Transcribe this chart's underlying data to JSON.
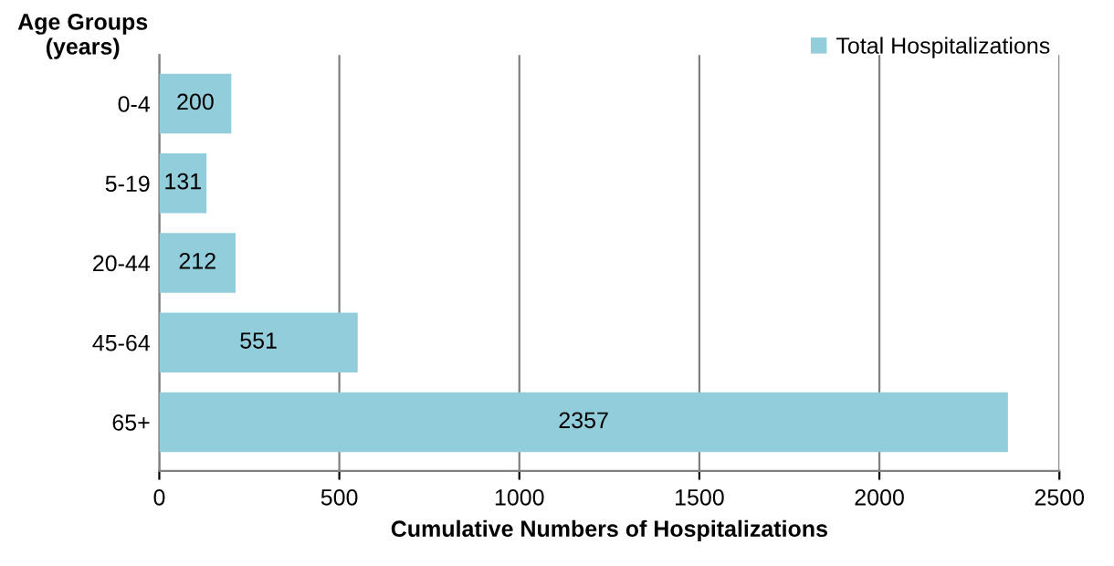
{
  "chart_data": {
    "type": "bar",
    "orientation": "horizontal",
    "ylabel": "Age Groups\n(years)",
    "xlabel": "Cumulative Numbers of Hospitalizations",
    "categories": [
      "0-4",
      "5-19",
      "20-44",
      "45-64",
      "65+"
    ],
    "series": [
      {
        "name": "Total Hospitalizations",
        "color": "#92cddc",
        "values": [
          200,
          131,
          212,
          551,
          2357
        ]
      }
    ],
    "xlim": [
      0,
      2500
    ],
    "xticks": [
      0,
      500,
      1000,
      1500,
      2000,
      2500
    ],
    "grid": "x",
    "legend": "top right",
    "data_labels": true
  }
}
